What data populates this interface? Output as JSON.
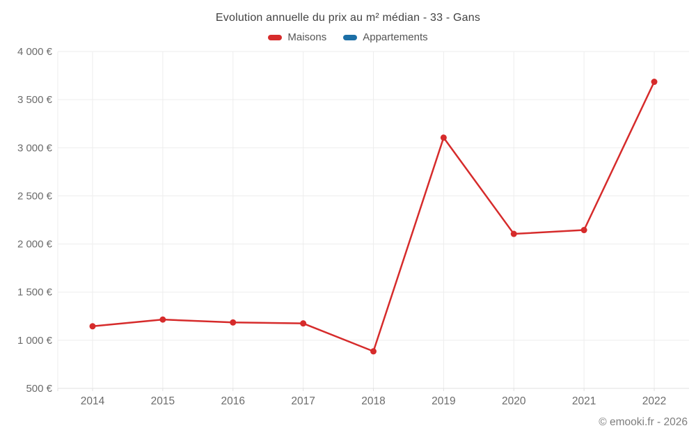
{
  "title": "Evolution annuelle du prix au m² médian - 33 - Gans",
  "legend": {
    "items": [
      {
        "label": "Maisons",
        "color": "#d62b2b"
      },
      {
        "label": "Appartements",
        "color": "#1c6fa6"
      }
    ]
  },
  "footer": "© emooki.fr - 2026",
  "chart_data": {
    "type": "line",
    "title": "Evolution annuelle du prix au m² médian - 33 - Gans",
    "x": [
      2014,
      2015,
      2016,
      2017,
      2018,
      2019,
      2020,
      2021,
      2022
    ],
    "xtick_labels": [
      "2014",
      "2015",
      "2016",
      "2017",
      "2018",
      "2019",
      "2020",
      "2021",
      "2022"
    ],
    "series": [
      {
        "name": "Maisons",
        "color": "#d62b2b",
        "values": [
          1145,
          1215,
          1185,
          1175,
          885,
          3105,
          2105,
          2145,
          3685
        ]
      },
      {
        "name": "Appartements",
        "color": "#1c6fa6",
        "values": []
      }
    ],
    "ylim": [
      500,
      4000
    ],
    "ytick_step": 500,
    "ytick_labels": [
      "500 €",
      "1 000 €",
      "1 500 €",
      "2 000 €",
      "2 500 €",
      "3 000 €",
      "3 500 €",
      "4 000 €"
    ],
    "ylabel_format": "euro",
    "grid": true,
    "legend_position": "top"
  },
  "colors": {
    "background": "#ffffff",
    "grid": "#ededed",
    "axis": "#e0e0e0",
    "tick_text": "#6b6b6b",
    "title_text": "#424242",
    "legend_text": "#555555",
    "footer_text": "#7d7d7d"
  }
}
